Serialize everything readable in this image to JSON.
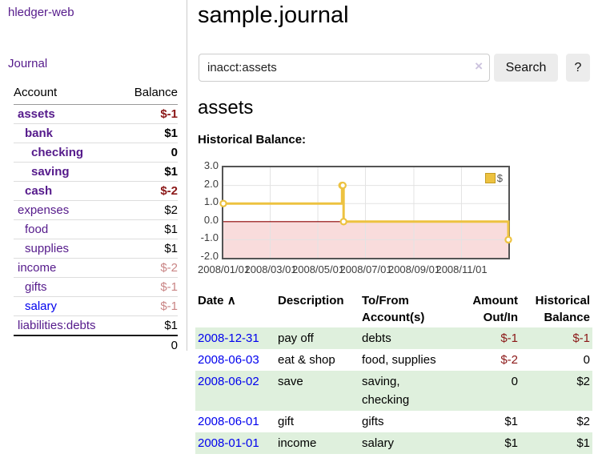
{
  "app": {
    "title": "hledger-web"
  },
  "sidebar": {
    "journal_link": "Journal",
    "table": {
      "account_header": "Account",
      "balance_header": "Balance",
      "rows": [
        {
          "name": "assets",
          "balance": "$-1",
          "indent": 1,
          "in_filter": true
        },
        {
          "name": "bank",
          "balance": "$1",
          "indent": 2,
          "in_filter": true
        },
        {
          "name": "checking",
          "balance": "0",
          "indent": 3,
          "in_filter": true
        },
        {
          "name": "saving",
          "balance": "$1",
          "indent": 3,
          "in_filter": true
        },
        {
          "name": "cash",
          "balance": "$-2",
          "indent": 2,
          "in_filter": true
        },
        {
          "name": "expenses",
          "balance": "$2",
          "indent": 1,
          "in_filter": false
        },
        {
          "name": "food",
          "balance": "$1",
          "indent": 2,
          "in_filter": false
        },
        {
          "name": "supplies",
          "balance": "$1",
          "indent": 2,
          "in_filter": false
        },
        {
          "name": "income",
          "balance": "$-2",
          "indent": 1,
          "in_filter": false
        },
        {
          "name": "gifts",
          "balance": "$-1",
          "indent": 2,
          "in_filter": false
        },
        {
          "name": "salary",
          "balance": "$-1",
          "indent": 2,
          "in_filter": false,
          "link_blue": true
        },
        {
          "name": "liabilities:debts",
          "balance": "$1",
          "indent": 1,
          "in_filter": false
        }
      ],
      "total": "0"
    }
  },
  "main": {
    "title": "sample.journal",
    "search": {
      "value": "inacct:assets",
      "clear_icon": "×",
      "search_button": "Search",
      "help_button": "?"
    },
    "account_heading": "assets",
    "chart_label": "Historical Balance:",
    "register": {
      "headers": {
        "date": "Date",
        "sort_icon": "∧",
        "description": "Description",
        "accounts": "To/From Account(s)",
        "amount": "Amount Out/In",
        "balance": "Historical Balance"
      },
      "rows": [
        {
          "date": "2008-12-31",
          "description": "pay off",
          "accounts": "debts",
          "amount": "$-1",
          "balance": "$-1"
        },
        {
          "date": "2008-06-03",
          "description": "eat & shop",
          "accounts": "food, supplies",
          "amount": "$-2",
          "balance": "0"
        },
        {
          "date": "2008-06-02",
          "description": "save",
          "accounts": "saving, checking",
          "amount": "0",
          "balance": "$2"
        },
        {
          "date": "2008-06-01",
          "description": "gift",
          "accounts": "gifts",
          "amount": "$1",
          "balance": "$2"
        },
        {
          "date": "2008-01-01",
          "description": "income",
          "accounts": "salary",
          "amount": "$1",
          "balance": "$1"
        }
      ]
    }
  },
  "chart_data": {
    "type": "line",
    "step": true,
    "title": "Historical Balance:",
    "series": [
      {
        "name": "$",
        "color": "#EDC240",
        "points": [
          [
            "2008-01-01",
            1
          ],
          [
            "2008-06-01",
            2
          ],
          [
            "2008-06-02",
            2
          ],
          [
            "2008-06-03",
            0
          ],
          [
            "2008-12-31",
            -1
          ]
        ]
      }
    ],
    "x_range": [
      "2008-01-01",
      "2008-12-31"
    ],
    "ylim": [
      -2,
      3
    ],
    "y_ticks": [
      3,
      2,
      1,
      0,
      -1,
      -2
    ],
    "y_tick_labels": [
      "3.0",
      "2.0",
      "1.0",
      "0.0",
      "-1.0",
      "-2.0"
    ],
    "x_ticks": [
      "2008-01-01",
      "2008-03-01",
      "2008-05-01",
      "2008-07-01",
      "2008-09-01",
      "2008-11-01"
    ],
    "x_tick_labels": [
      "2008/01/01",
      "2008/03/01",
      "2008/05/01",
      "2008/07/01",
      "2008/09/01",
      "2008/11/01"
    ],
    "legend_position": "top-right",
    "grid": true,
    "colors": {
      "grid_border": "#545454",
      "grid_line": "#e3e3e3",
      "negative_region": "#f9dcdc",
      "zero_line": "#8b0000",
      "negative_value_text": "#8b1717"
    }
  }
}
